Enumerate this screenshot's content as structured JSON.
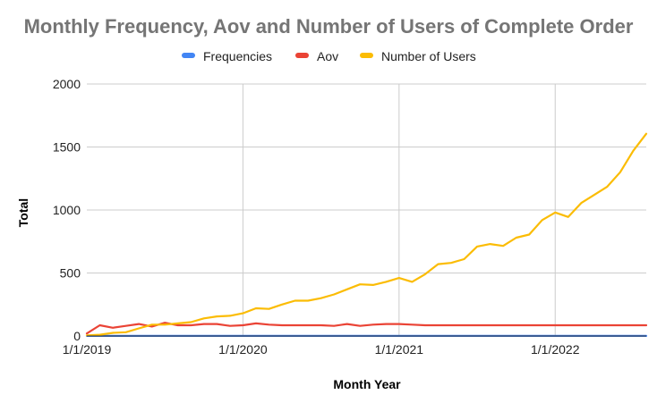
{
  "chart_data": {
    "type": "line",
    "title": "Monthly Frequency, Aov and Number of Users of Complete Order",
    "xlabel": "Month Year",
    "ylabel": "Total",
    "ylim": [
      0,
      2000
    ],
    "y_ticks": [
      "0",
      "500",
      "1000",
      "1500",
      "2000"
    ],
    "x_ticks": [
      "1/1/2019",
      "1/1/2020",
      "1/1/2021",
      "1/1/2022"
    ],
    "x": [
      "2019-01",
      "2019-02",
      "2019-03",
      "2019-04",
      "2019-05",
      "2019-06",
      "2019-07",
      "2019-08",
      "2019-09",
      "2019-10",
      "2019-11",
      "2019-12",
      "2020-01",
      "2020-02",
      "2020-03",
      "2020-04",
      "2020-05",
      "2020-06",
      "2020-07",
      "2020-08",
      "2020-09",
      "2020-10",
      "2020-11",
      "2020-12",
      "2021-01",
      "2021-02",
      "2021-03",
      "2021-04",
      "2021-05",
      "2021-06",
      "2021-07",
      "2021-08",
      "2021-09",
      "2021-10",
      "2021-11",
      "2021-12",
      "2022-01",
      "2022-02",
      "2022-03",
      "2022-04",
      "2022-05",
      "2022-06",
      "2022-07",
      "2022-08"
    ],
    "grid": true,
    "legend_position": "top",
    "series": [
      {
        "name": "Frequencies",
        "color": "#4285f4",
        "values": [
          1,
          1,
          1,
          1,
          1,
          1,
          1,
          1,
          1,
          1,
          1,
          1,
          1,
          1,
          1,
          1,
          1,
          1,
          1,
          1,
          1,
          1,
          1,
          1,
          1,
          1,
          1,
          1,
          1,
          1,
          1,
          1,
          1,
          1,
          1,
          1,
          1,
          1,
          1,
          1,
          1,
          1,
          1,
          1
        ]
      },
      {
        "name": "Aov",
        "color": "#ea4335",
        "values": [
          20,
          85,
          65,
          80,
          95,
          75,
          105,
          85,
          85,
          95,
          95,
          80,
          85,
          100,
          90,
          85,
          85,
          85,
          85,
          80,
          95,
          80,
          90,
          95,
          95,
          90,
          85,
          85,
          85,
          85,
          85,
          85,
          85,
          85,
          85,
          85,
          85,
          85,
          85,
          85,
          85,
          85,
          85,
          85
        ]
      },
      {
        "name": "Number of Users",
        "color": "#fbbc04",
        "values": [
          5,
          10,
          25,
          30,
          60,
          90,
          90,
          100,
          110,
          140,
          155,
          160,
          180,
          220,
          215,
          250,
          280,
          280,
          300,
          330,
          370,
          410,
          405,
          430,
          460,
          430,
          490,
          570,
          580,
          610,
          710,
          730,
          715,
          780,
          805,
          920,
          980,
          945,
          1055,
          1120,
          1185,
          1300,
          1470,
          1605
        ]
      }
    ]
  }
}
